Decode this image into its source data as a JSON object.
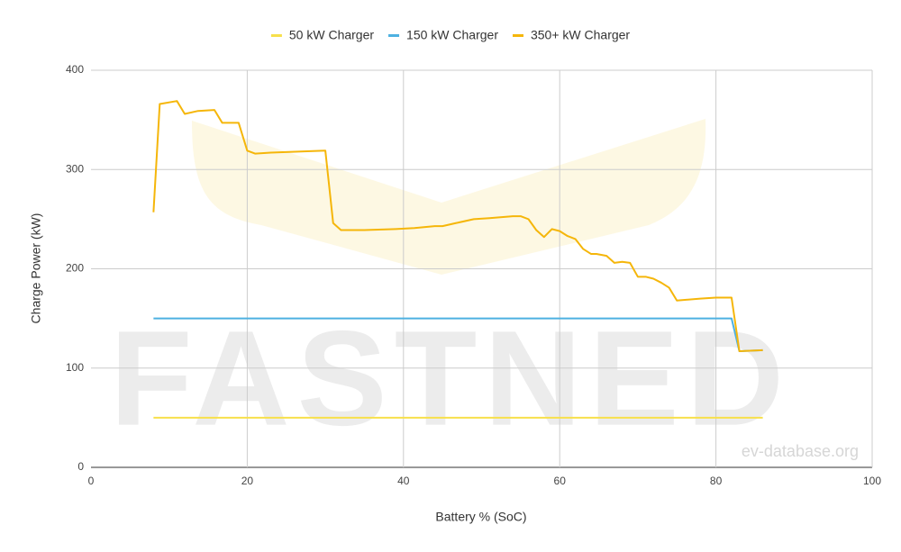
{
  "chart_data": {
    "type": "line",
    "x_label": "Battery % (SoC)",
    "y_label": "Charge Power (kW)",
    "watermark": "FASTNED",
    "credit": "ev-database.org",
    "xlim": [
      0,
      100
    ],
    "xticks": [
      0,
      20,
      40,
      60,
      80,
      100
    ],
    "ylim": [
      0,
      400
    ],
    "yticks": [
      0,
      100,
      200,
      300,
      400
    ],
    "grid": true,
    "legend": "top",
    "series": [
      {
        "name": "50 kW Charger",
        "color": "#f7e04b",
        "x": [
          8,
          86
        ],
        "values": [
          50,
          50
        ]
      },
      {
        "name": "150 kW Charger",
        "color": "#4db1e1",
        "x": [
          8,
          82,
          83,
          86
        ],
        "values": [
          150,
          150,
          117,
          118
        ]
      },
      {
        "name": "350+ kW Charger",
        "color": "#f5b60a",
        "x": [
          8,
          8.8,
          11,
          12,
          13.7,
          15.8,
          16.8,
          18.9,
          20,
          21,
          23,
          30,
          31,
          32,
          34,
          35,
          39,
          41.4,
          44,
          45,
          46.7,
          49,
          51,
          54,
          55,
          56,
          57,
          58,
          59,
          60,
          61,
          62,
          63,
          64,
          64.7,
          66,
          67,
          68,
          69,
          70,
          71,
          72,
          73,
          74,
          75,
          78,
          80,
          82,
          83,
          86
        ],
        "values": [
          257,
          366,
          369,
          356,
          359,
          360,
          347,
          347,
          319,
          316,
          317,
          319,
          246,
          239,
          239,
          239,
          240,
          241,
          243,
          243,
          246,
          250,
          251,
          253,
          253,
          250,
          239,
          232,
          240,
          238,
          233,
          230,
          220,
          215,
          215,
          213,
          206,
          207,
          206,
          192,
          192,
          190,
          186,
          181,
          168,
          170,
          171,
          171,
          117,
          118
        ]
      }
    ]
  }
}
